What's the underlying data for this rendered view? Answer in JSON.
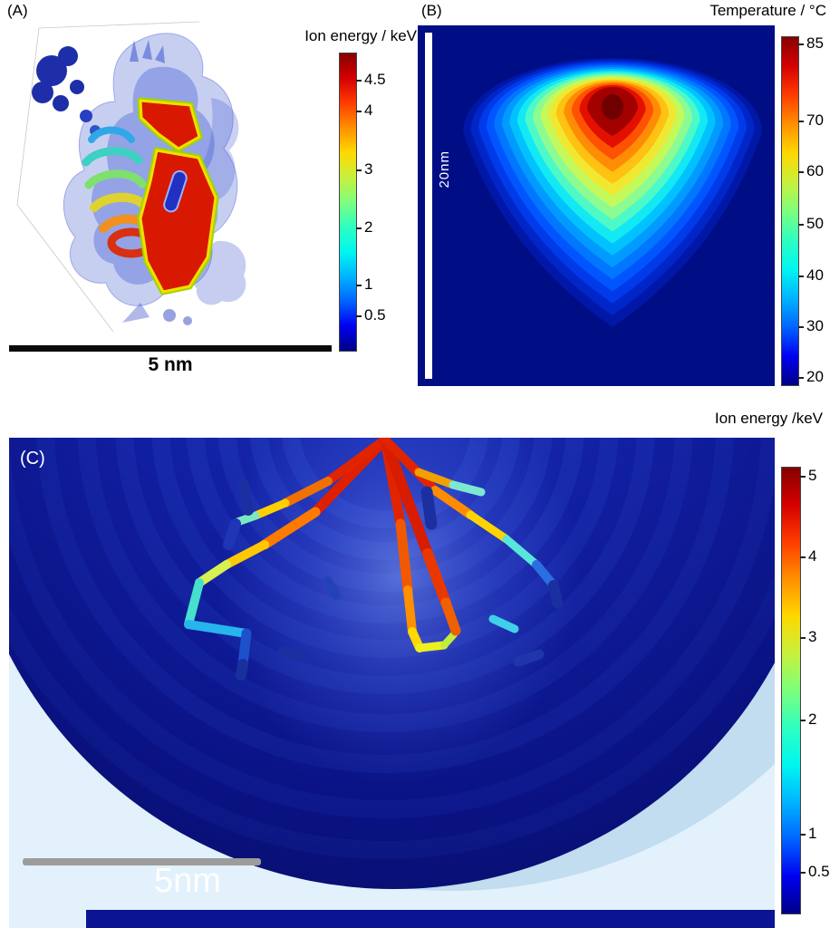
{
  "figure": {
    "panels": {
      "a": {
        "label": "(A)",
        "colorbar": {
          "title": "Ion energy / keV",
          "ticks": [
            {
              "label": "4.5",
              "pos": 0.09
            },
            {
              "label": "4",
              "pos": 0.195
            },
            {
              "label": "3",
              "pos": 0.39
            },
            {
              "label": "2",
              "pos": 0.585
            },
            {
              "label": "1",
              "pos": 0.775
            },
            {
              "label": "0.5",
              "pos": 0.88
            }
          ]
        },
        "scalebar_label": "5 nm"
      },
      "b": {
        "label": "(B)",
        "title": "Temperature / °C",
        "scalebar_label": "20nm",
        "colorbar": {
          "ticks": [
            {
              "label": "85",
              "pos": 0.02
            },
            {
              "label": "70",
              "pos": 0.24
            },
            {
              "label": "60",
              "pos": 0.385
            },
            {
              "label": "50",
              "pos": 0.535
            },
            {
              "label": "40",
              "pos": 0.685
            },
            {
              "label": "30",
              "pos": 0.83
            },
            {
              "label": "20",
              "pos": 0.975
            }
          ]
        }
      },
      "c": {
        "label": "(C)",
        "title": "Ion energy /keV",
        "scalebar_label": "5nm",
        "colorbar": {
          "ticks": [
            {
              "label": "5",
              "pos": 0.02
            },
            {
              "label": "4",
              "pos": 0.2
            },
            {
              "label": "3",
              "pos": 0.38
            },
            {
              "label": "2",
              "pos": 0.565
            },
            {
              "label": "1",
              "pos": 0.82
            },
            {
              "label": "0.5",
              "pos": 0.905
            }
          ]
        }
      }
    },
    "colors": {
      "jet_bottom_to_top": [
        "#000087",
        "#0000f0",
        "#0064ff",
        "#00b4ff",
        "#00f6f0",
        "#2effc0",
        "#7dff7d",
        "#c8f03c",
        "#ffd800",
        "#ff9000",
        "#ff3c00",
        "#d40000",
        "#870000"
      ],
      "contour_outer_to_inner": [
        "#0117a8",
        "#0126c8",
        "#013ae8",
        "#0155ff",
        "#0176ff",
        "#019aff",
        "#01c2ff",
        "#13e9f3",
        "#4ef9c8",
        "#8cfc92",
        "#c4f95c",
        "#f0e830",
        "#ffc112",
        "#ff8c05",
        "#ff5102",
        "#e31000",
        "#a30000"
      ],
      "contour_core": "#700000",
      "plot_bg_dark_blue": "#000e85",
      "panel_c_light_bg": "#e2f1fb"
    }
  }
}
